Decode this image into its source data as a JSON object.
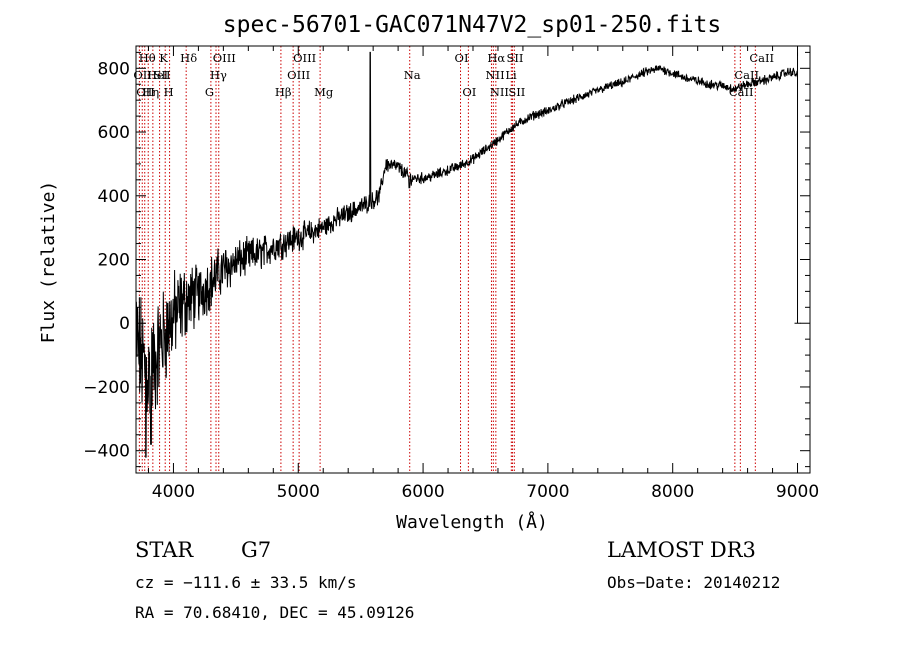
{
  "chart_data": {
    "type": "line",
    "title": "spec-56701-GAC071N47V2_sp01-250.fits",
    "xlabel": "Wavelength (Å)",
    "ylabel": "Flux (relative)",
    "xlim": [
      3700,
      9100
    ],
    "ylim": [
      -470,
      870
    ],
    "xticks": [
      4000,
      5000,
      6000,
      7000,
      8000,
      9000
    ],
    "xtick_labels": [
      "4000",
      "5000",
      "6000",
      "7000",
      "8000",
      "9000"
    ],
    "yticks": [
      -400,
      -200,
      0,
      200,
      400,
      600,
      800
    ],
    "ytick_labels": [
      "−400",
      "−200",
      "0",
      "200",
      "400",
      "600",
      "800"
    ],
    "series": [
      {
        "name": "flux",
        "anchors": [
          [
            3700,
            -50
          ],
          [
            3750,
            -120
          ],
          [
            3800,
            -160
          ],
          [
            3850,
            -130
          ],
          [
            3900,
            -60
          ],
          [
            4000,
            20
          ],
          [
            4100,
            70
          ],
          [
            4200,
            90
          ],
          [
            4300,
            130
          ],
          [
            4400,
            170
          ],
          [
            4500,
            190
          ],
          [
            4600,
            210
          ],
          [
            4700,
            220
          ],
          [
            4800,
            240
          ],
          [
            4900,
            255
          ],
          [
            5000,
            270
          ],
          [
            5100,
            285
          ],
          [
            5200,
            300
          ],
          [
            5300,
            325
          ],
          [
            5400,
            345
          ],
          [
            5500,
            365
          ],
          [
            5600,
            385
          ],
          [
            5650,
            400
          ],
          [
            5700,
            500
          ],
          [
            5800,
            490
          ],
          [
            5900,
            455
          ],
          [
            6000,
            455
          ],
          [
            6100,
            465
          ],
          [
            6200,
            480
          ],
          [
            6300,
            495
          ],
          [
            6400,
            515
          ],
          [
            6500,
            545
          ],
          [
            6600,
            575
          ],
          [
            6700,
            610
          ],
          [
            6800,
            635
          ],
          [
            6900,
            655
          ],
          [
            7000,
            665
          ],
          [
            7100,
            685
          ],
          [
            7200,
            700
          ],
          [
            7300,
            715
          ],
          [
            7400,
            730
          ],
          [
            7500,
            745
          ],
          [
            7600,
            755
          ],
          [
            7700,
            775
          ],
          [
            7800,
            790
          ],
          [
            7900,
            800
          ],
          [
            8000,
            785
          ],
          [
            8100,
            770
          ],
          [
            8200,
            760
          ],
          [
            8300,
            750
          ],
          [
            8400,
            745
          ],
          [
            8500,
            735
          ],
          [
            8600,
            750
          ],
          [
            8700,
            760
          ],
          [
            8800,
            770
          ],
          [
            8900,
            785
          ],
          [
            8950,
            790
          ],
          [
            9000,
            780
          ]
        ],
        "noise_profile": [
          [
            3700,
            160
          ],
          [
            3900,
            130
          ],
          [
            4200,
            75
          ],
          [
            4600,
            45
          ],
          [
            5200,
            28
          ],
          [
            5600,
            22
          ],
          [
            6000,
            14
          ],
          [
            6500,
            12
          ],
          [
            7500,
            11
          ],
          [
            9000,
            12
          ]
        ],
        "features": [
          {
            "x": 5577,
            "y": 850,
            "kind": "spike"
          },
          {
            "x": 5890,
            "y": 425,
            "kind": "dip"
          },
          {
            "x": 3780,
            "y": -420,
            "kind": "dip"
          },
          {
            "x": 3820,
            "y": -380,
            "kind": "dip"
          }
        ],
        "error_bar": {
          "x": 9000,
          "y_low": 0,
          "y_high": 850
        }
      }
    ],
    "lines": [
      {
        "wave": 3727,
        "label": "OII",
        "row": 1
      },
      {
        "wave": 3750,
        "label": "OII",
        "row": 2
      },
      {
        "wave": 3770,
        "label": "Hθ",
        "row": 0
      },
      {
        "wave": 3798,
        "label": "Hη",
        "row": 2
      },
      {
        "wave": 3835,
        "label": "HeI",
        "row": 1
      },
      {
        "wave": 3889,
        "label": "SII",
        "row": 1
      },
      {
        "wave": 3934,
        "label": "K",
        "row": 0
      },
      {
        "wave": 3969,
        "label": "H",
        "row": 2
      },
      {
        "wave": 4102,
        "label": "Hδ",
        "row": 0
      },
      {
        "wave": 4300,
        "label": "G",
        "row": 2
      },
      {
        "wave": 4341,
        "label": "Hγ",
        "row": 1
      },
      {
        "wave": 4363,
        "label": "OIII",
        "row": 0
      },
      {
        "wave": 4861,
        "label": "Hβ",
        "row": 2
      },
      {
        "wave": 4959,
        "label": "OIII",
        "row": 1
      },
      {
        "wave": 5007,
        "label": "OIII",
        "row": 0
      },
      {
        "wave": 5175,
        "label": "Mg",
        "row": 2
      },
      {
        "wave": 5893,
        "label": "Na",
        "row": 1
      },
      {
        "wave": 6300,
        "label": "OI",
        "row": 0
      },
      {
        "wave": 6363,
        "label": "OI",
        "row": 2
      },
      {
        "wave": 6548,
        "label": "NII",
        "row": 1
      },
      {
        "wave": 6563,
        "label": "Hα",
        "row": 0
      },
      {
        "wave": 6583,
        "label": "NII",
        "row": 2
      },
      {
        "wave": 6707,
        "label": "Li",
        "row": 1
      },
      {
        "wave": 6716,
        "label": "SII",
        "row": 0
      },
      {
        "wave": 6731,
        "label": "SII",
        "row": 2
      },
      {
        "wave": 8498,
        "label": "CaII",
        "row": 2
      },
      {
        "wave": 8542,
        "label": "CaII",
        "row": 1
      },
      {
        "wave": 8662,
        "label": "CaII",
        "row": 0
      }
    ]
  },
  "info": {
    "object_class": "STAR",
    "subclass": "G7",
    "survey": "LAMOST DR3",
    "redshift": "cz = −111.6 ± 33.5 km/s",
    "obs_date": "Obs−Date: 20140212",
    "coords": "RA =  70.68410, DEC =  45.09126"
  },
  "colors": {
    "line_markers": "#cc0000",
    "spectrum": "#000000",
    "background": "#ffffff"
  }
}
